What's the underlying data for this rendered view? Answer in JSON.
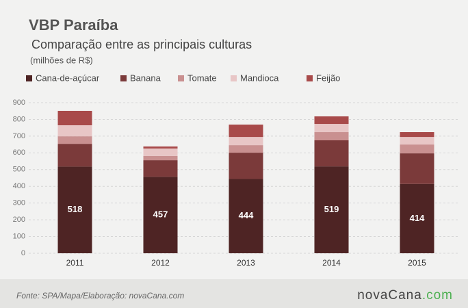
{
  "chart_data": {
    "type": "bar",
    "stacked": true,
    "title": "VBP Paraíba",
    "subtitle": "Comparação entre as principais culturas",
    "unit_label": "(milhões de R$)",
    "categories": [
      "2011",
      "2012",
      "2013",
      "2014",
      "2015"
    ],
    "series": [
      {
        "name": "Cana-de-açúcar",
        "color": "#4e2424",
        "values": [
          518,
          457,
          444,
          519,
          414
        ],
        "show_labels": true
      },
      {
        "name": "Banana",
        "color": "#7b3a3a",
        "values": [
          136,
          99,
          157,
          156,
          183
        ]
      },
      {
        "name": "Tomate",
        "color": "#c99090",
        "values": [
          45,
          25,
          45,
          49,
          53
        ]
      },
      {
        "name": "Mandioca",
        "color": "#e8c6c6",
        "values": [
          66,
          45,
          49,
          49,
          45
        ]
      },
      {
        "name": "Feijão",
        "color": "#a84a4a",
        "values": [
          86,
          12,
          74,
          45,
          29
        ]
      }
    ],
    "ylim": [
      0,
      900
    ],
    "yticks": [
      0,
      100,
      200,
      300,
      400,
      500,
      600,
      700,
      800,
      900
    ],
    "grid": true,
    "legend": "top",
    "source": "Fonte: SPA/Mapa/Elaboração: novaCana.com",
    "logo": [
      "nova",
      "Cana",
      ".com"
    ]
  }
}
